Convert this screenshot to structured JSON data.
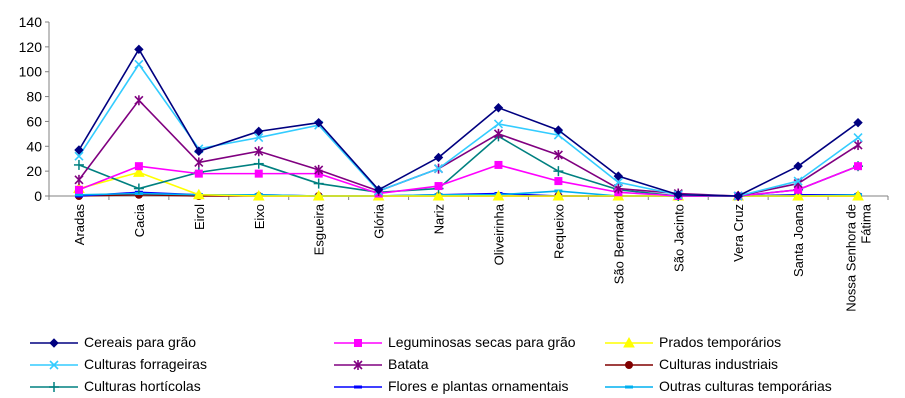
{
  "chart_data": {
    "type": "line",
    "title": "",
    "xlabel": "",
    "ylabel": "",
    "ylim": [
      0,
      140
    ],
    "yticks": [
      0,
      20,
      40,
      60,
      80,
      100,
      120,
      140
    ],
    "grid": false,
    "legend_position": "bottom",
    "categories": [
      "Aradas",
      "Cacia",
      "Eirol",
      "Eixo",
      "Esgueira",
      "Glória",
      "Nariz",
      "Oliveirinha",
      "Requeixo",
      "São Bernardo",
      "São Jacinto",
      "Vera Cruz",
      "Santa Joana",
      "Nossa Senhora de Fátima"
    ],
    "series": [
      {
        "name": "Cereais para grão",
        "color": "#000080",
        "marker": "diamond",
        "values": [
          37,
          118,
          36,
          52,
          59,
          5,
          31,
          71,
          53,
          16,
          1,
          0,
          24,
          59
        ]
      },
      {
        "name": "Leguminosas secas para grão",
        "color": "#FF00FF",
        "marker": "square",
        "values": [
          5,
          24,
          18,
          18,
          18,
          2,
          8,
          25,
          12,
          3,
          0,
          0,
          5,
          24
        ]
      },
      {
        "name": "Prados temporários",
        "color": "#FFFF00",
        "marker": "triangle",
        "values": [
          6,
          19,
          1,
          0,
          0,
          0,
          0,
          0,
          0,
          0,
          0,
          0,
          0,
          0
        ]
      },
      {
        "name": "Culturas forrageiras",
        "color": "#33CCFF",
        "marker": "x",
        "values": [
          32,
          106,
          38,
          47,
          57,
          4,
          22,
          58,
          49,
          11,
          1,
          0,
          12,
          47
        ]
      },
      {
        "name": "Batata",
        "color": "#800080",
        "marker": "star",
        "values": [
          13,
          77,
          27,
          36,
          21,
          4,
          22,
          50,
          33,
          6,
          2,
          0,
          10,
          41
        ]
      },
      {
        "name": "Culturas industriais",
        "color": "#800000",
        "marker": "circle",
        "values": [
          0,
          1,
          0,
          0,
          0,
          0,
          0,
          0,
          0,
          0,
          0,
          0,
          0,
          0
        ]
      },
      {
        "name": "Culturas hortícolas",
        "color": "#008080",
        "marker": "plus",
        "values": [
          25,
          6,
          19,
          26,
          10,
          3,
          6,
          48,
          20,
          5,
          0,
          0,
          5,
          24
        ]
      },
      {
        "name": "Flores e plantas ornamentais",
        "color": "#0000FF",
        "marker": "dash",
        "values": [
          0,
          3,
          1,
          1,
          0,
          0,
          1,
          2,
          0,
          0,
          0,
          0,
          1,
          1
        ]
      },
      {
        "name": "Outras culturas temporárias",
        "color": "#00B0F0",
        "marker": "dash",
        "values": [
          1,
          2,
          1,
          1,
          0,
          0,
          1,
          1,
          4,
          0,
          0,
          0,
          0,
          1
        ]
      }
    ]
  }
}
